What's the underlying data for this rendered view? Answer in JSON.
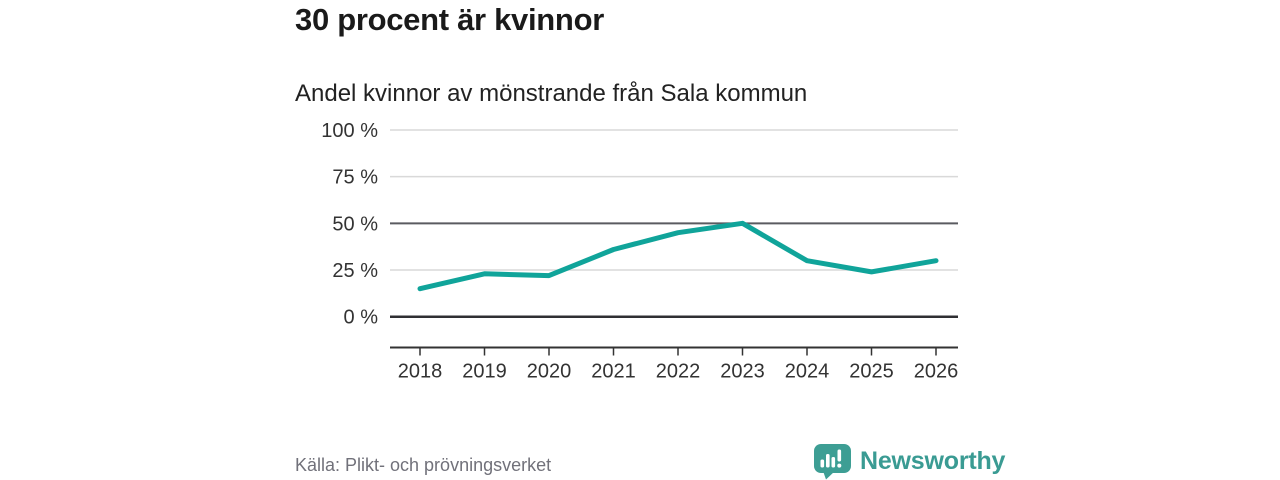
{
  "header": {
    "title": "30 procent är kvinnor",
    "subtitle": "Andel kvinnor av mönstrande från Sala kommun"
  },
  "footer": {
    "source": "Källa: Plikt- och prövningsverket",
    "brand": "Newsworthy"
  },
  "logo": {
    "icon": "newsworthy-bubble-chart-icon"
  },
  "colors": {
    "line": "#10a49a",
    "brand": "#3a9b93",
    "grid_light": "#d9d9d9",
    "grid_mid": "#5a5b60",
    "grid_dark": "#2f2f33",
    "axis": "#333333",
    "tick_text": "#333333",
    "title_text": "#1a1a1a",
    "muted_text": "#71717a"
  },
  "chart_data": {
    "type": "line",
    "title": "30 procent är kvinnor",
    "subtitle": "Andel kvinnor av mönstrande från Sala kommun",
    "x": [
      2018,
      2019,
      2020,
      2021,
      2022,
      2023,
      2024,
      2025,
      2026
    ],
    "series": [
      {
        "name": "Andel kvinnor av mönstrande (%)",
        "values": [
          15,
          23,
          22,
          36,
          45,
          50,
          30,
          24,
          30
        ]
      }
    ],
    "xlabel": "",
    "ylabel": "",
    "ylim": [
      0,
      100
    ],
    "yticks": [
      0,
      25,
      50,
      75,
      100
    ],
    "ytick_suffix": " %",
    "grid": true,
    "legend_position": "none",
    "source": "Källa: Plikt- och prövningsverket"
  }
}
